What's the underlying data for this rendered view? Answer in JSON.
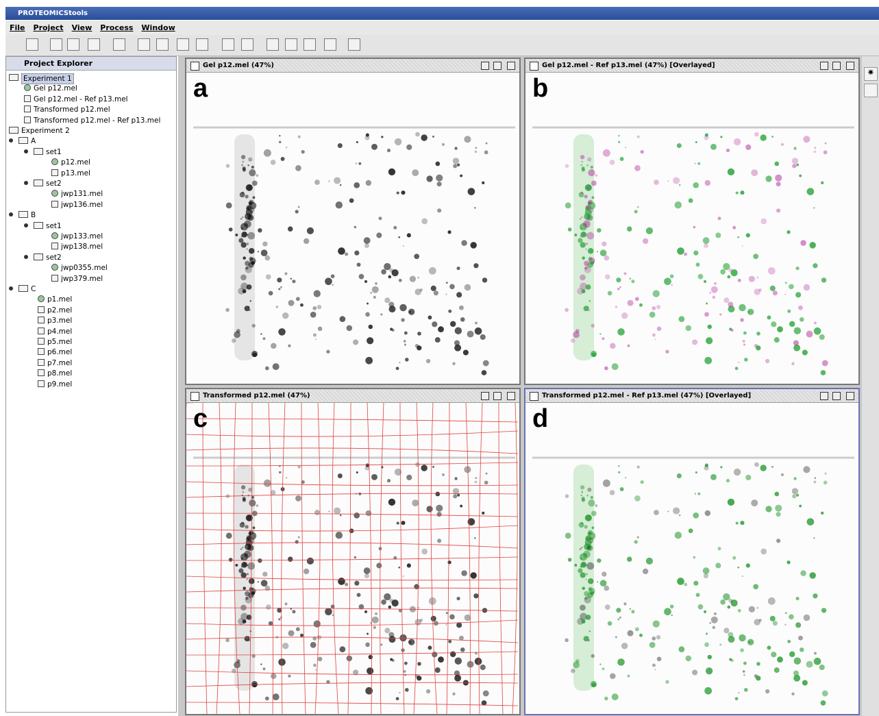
{
  "window": {
    "title": "PROTEOMICStools"
  },
  "menu": [
    "File",
    "Project",
    "View",
    "Process",
    "Window"
  ],
  "explorer": {
    "title": "Project Explorer",
    "items": [
      "Experiment 1",
      "Gel p12.mel",
      "Gel p12.mel - Ref p13.mel",
      "Transformed p12.mel",
      "Transformed p12.mel - Ref p13.mel",
      "Experiment 2",
      "A",
      "set1",
      "p12.mel",
      "p13.mel",
      "set2",
      "jwp131.mel",
      "jwp136.mel",
      "B",
      "set1",
      "jwp133.mel",
      "jwp138.mel",
      "set2",
      "jwp0355.mel",
      "jwp379.mel",
      "C",
      "p1.mel",
      "p2.mel",
      "p3.mel",
      "p4.mel",
      "p5.mel",
      "p6.mel",
      "p7.mel",
      "p8.mel",
      "p9.mel"
    ]
  },
  "panels": [
    {
      "title": "Gel p12.mel (47%)",
      "letter": "a"
    },
    {
      "title": "Gel p12.mel - Ref p13.mel (47%) [Overlayed]",
      "letter": "b"
    },
    {
      "title": "Transformed p12.mel (47%)",
      "letter": "c"
    },
    {
      "title": "Transformed p12.mel - Ref p13.mel (47%) [Overlayed]",
      "letter": "d"
    }
  ]
}
